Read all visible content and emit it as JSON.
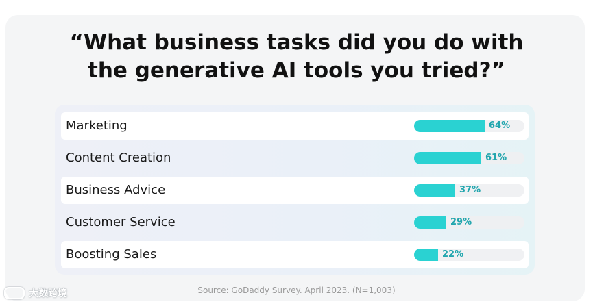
{
  "title_line1": "“What business tasks did you do with",
  "title_line2": "the generative AI tools you tried?”",
  "source": "Source: GoDaddy Survey. April 2023. (N=1,003)",
  "watermark": "大数跨境",
  "colors": {
    "bar": "#2ad2d2",
    "percent_text": "#22a6ae"
  },
  "chart_data": {
    "type": "bar",
    "orientation": "horizontal",
    "title": "“What business tasks did you do with the generative AI tools you tried?”",
    "categories": [
      "Marketing",
      "Content Creation",
      "Business Advice",
      "Customer Service",
      "Boosting Sales"
    ],
    "values": [
      64,
      61,
      37,
      29,
      22
    ],
    "value_labels": [
      "64%",
      "61%",
      "37%",
      "29%",
      "22%"
    ],
    "unit": "%",
    "xlim": [
      0,
      100
    ],
    "grid": false,
    "legend": "none"
  }
}
